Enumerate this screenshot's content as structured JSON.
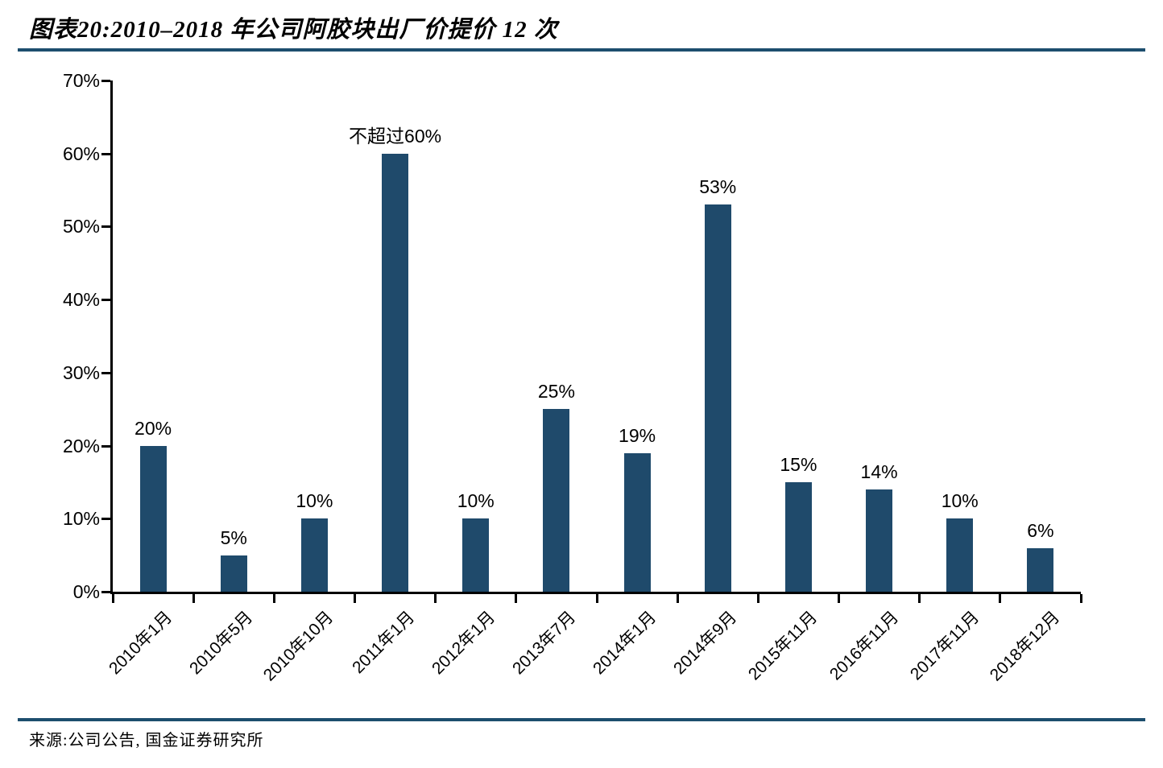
{
  "page": {
    "title": "图表20:2010–2018 年公司阿胶块出厂价提价 12 次",
    "source": "来源:公司公告, 国金证券研究所"
  },
  "colors": {
    "bar": "#1F4A6B",
    "divider": "#1D4E6E",
    "axis": "#000000"
  },
  "chart_data": {
    "type": "bar",
    "title": "图表20:2010–2018 年公司阿胶块出厂价提价 12 次",
    "categories": [
      "2010年1月",
      "2010年5月",
      "2010年10月",
      "2011年1月",
      "2012年1月",
      "2013年7月",
      "2014年1月",
      "2014年9月",
      "2015年11月",
      "2016年11月",
      "2017年11月",
      "2018年12月"
    ],
    "values": [
      20,
      5,
      10,
      60,
      10,
      25,
      19,
      53,
      15,
      14,
      10,
      6
    ],
    "bar_labels": [
      "20%",
      "5%",
      "10%",
      "不超过60%",
      "10%",
      "25%",
      "19%",
      "53%",
      "15%",
      "14%",
      "10%",
      "6%"
    ],
    "xlabel": "",
    "ylabel": "",
    "ylim": [
      0,
      70
    ],
    "yticks": [
      0,
      10,
      20,
      30,
      40,
      50,
      60,
      70
    ],
    "ytick_labels": [
      "0%",
      "10%",
      "20%",
      "30%",
      "40%",
      "50%",
      "60%",
      "70%"
    ],
    "grid": false,
    "legend": null,
    "bar_color": "#1F4A6B",
    "x_label_rotation": -45,
    "source": "来源:公司公告, 国金证券研究所"
  }
}
